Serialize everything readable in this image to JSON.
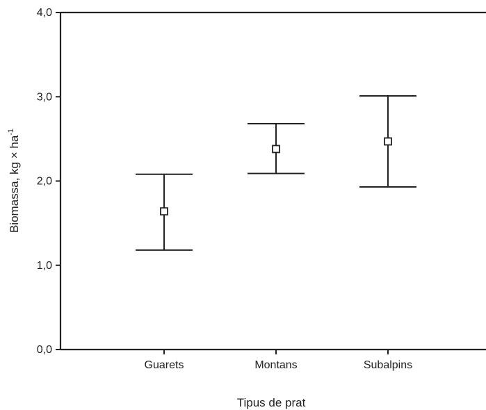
{
  "chart_data": {
    "type": "scatter",
    "subtype": "error-bar",
    "title": "",
    "xlabel": "Tipus de prat",
    "ylabel": "Biomassa, kg × ha",
    "ylabel_superscript": "-1",
    "categories": [
      "Guarets",
      "Montans",
      "Subalpins"
    ],
    "series": [
      {
        "mean": [
          1.64,
          2.38,
          2.47
        ],
        "lower": [
          1.18,
          2.09,
          1.93
        ],
        "upper": [
          2.08,
          2.68,
          3.01
        ],
        "marker": "open-square"
      }
    ],
    "ylim": [
      0,
      4
    ],
    "yticks": [
      "0,0",
      "1,0",
      "2,0",
      "3,0",
      "4,0"
    ],
    "yticks_values": [
      0,
      1,
      2,
      3,
      4
    ],
    "grid": false,
    "legend": "none"
  }
}
